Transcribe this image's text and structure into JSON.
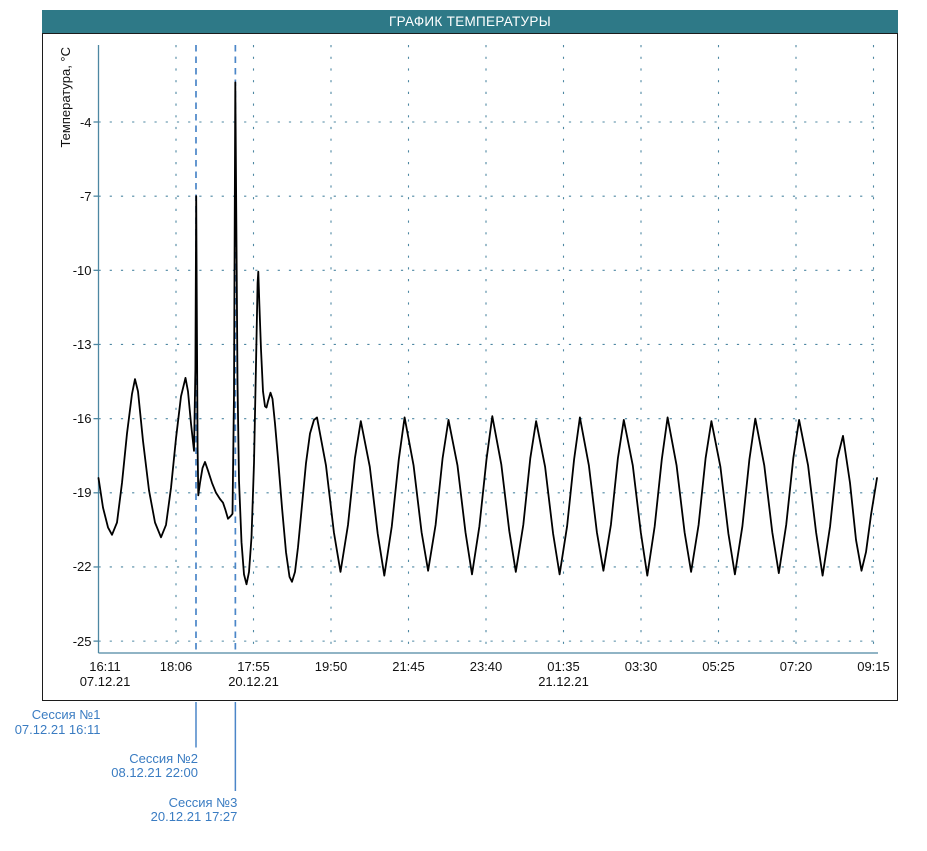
{
  "title": "ГРАФИК ТЕМПЕРАТУРЫ",
  "colors": {
    "title_bar_bg": "#2e7987",
    "title_text": "#ffffff",
    "frame_border": "#1c1c1c",
    "axis": "#4d87a2",
    "grid": "#4d87a2",
    "curve": "#000000",
    "session_line": "#4b86c8",
    "session_text": "#3a7cc2",
    "tick_text": "#111111"
  },
  "sessions": [
    {
      "name": "Сессия №1",
      "datetime": "07.12.21 16:11",
      "axis_u": 0.0,
      "has_line": false
    },
    {
      "name": "Сессия №2",
      "datetime": "08.12.21 22:00",
      "axis_u": 1.258,
      "has_line": true
    },
    {
      "name": "Сессия №3",
      "datetime": "20.12.21 17:27",
      "axis_u": 1.766,
      "has_line": true
    }
  ],
  "chart_data": {
    "type": "line",
    "title": "ГРАФИК ТЕМПЕРАТУРЫ",
    "xlabel": "",
    "ylabel": "Температура, °C",
    "ylim": [
      -25.5,
      -0.9
    ],
    "grid": "dotted",
    "legend": "none",
    "x_unit": "x-axis tick index (16:11 07.12.21 = 0 ... 09:15 = 10)",
    "y_ticks": [
      -4,
      -7,
      -10,
      -13,
      -16,
      -19,
      -22,
      -25
    ],
    "x_ticks": [
      {
        "time": "16:11",
        "date": "07.12.21"
      },
      {
        "time": "18:06",
        "date": ""
      },
      {
        "time": "17:55",
        "date": "20.12.21"
      },
      {
        "time": "19:50",
        "date": ""
      },
      {
        "time": "21:45",
        "date": ""
      },
      {
        "time": "23:40",
        "date": ""
      },
      {
        "time": "01:35",
        "date": "21.12.21"
      },
      {
        "time": "03:30",
        "date": ""
      },
      {
        "time": "05:25",
        "date": ""
      },
      {
        "time": "07:20",
        "date": ""
      },
      {
        "time": "09:15",
        "date": ""
      }
    ],
    "annotations": [
      {
        "label": "Сессия №1",
        "x_u": 0.0
      },
      {
        "label": "Сессия №2",
        "x_u": 1.258
      },
      {
        "label": "Сессия №3",
        "x_u": 1.766
      }
    ],
    "points": [
      [
        0.0,
        -18.4
      ],
      [
        0.058,
        -19.6
      ],
      [
        0.123,
        -20.4
      ],
      [
        0.174,
        -20.7
      ],
      [
        0.239,
        -20.2
      ],
      [
        0.303,
        -18.6
      ],
      [
        0.368,
        -16.6
      ],
      [
        0.432,
        -15.0
      ],
      [
        0.471,
        -14.4
      ],
      [
        0.51,
        -14.9
      ],
      [
        0.574,
        -16.9
      ],
      [
        0.652,
        -18.9
      ],
      [
        0.729,
        -20.2
      ],
      [
        0.806,
        -20.8
      ],
      [
        0.871,
        -20.3
      ],
      [
        0.935,
        -18.8
      ],
      [
        1.0,
        -16.8
      ],
      [
        1.065,
        -15.1
      ],
      [
        1.123,
        -14.35
      ],
      [
        1.155,
        -14.9
      ],
      [
        1.194,
        -16.2
      ],
      [
        1.232,
        -17.3
      ],
      [
        1.25,
        -14.0
      ],
      [
        1.261,
        -7.0
      ],
      [
        1.271,
        -13.0
      ],
      [
        1.279,
        -17.2
      ],
      [
        1.288,
        -19.1
      ],
      [
        1.31,
        -18.6
      ],
      [
        1.342,
        -18.0
      ],
      [
        1.374,
        -17.75
      ],
      [
        1.413,
        -18.1
      ],
      [
        1.465,
        -18.6
      ],
      [
        1.516,
        -19.0
      ],
      [
        1.568,
        -19.25
      ],
      [
        1.606,
        -19.4
      ],
      [
        1.639,
        -19.7
      ],
      [
        1.671,
        -20.05
      ],
      [
        1.703,
        -19.95
      ],
      [
        1.729,
        -19.85
      ],
      [
        1.748,
        -15.0
      ],
      [
        1.765,
        -2.4
      ],
      [
        1.781,
        -9.0
      ],
      [
        1.794,
        -14.5
      ],
      [
        1.813,
        -18.5
      ],
      [
        1.845,
        -21.0
      ],
      [
        1.877,
        -22.3
      ],
      [
        1.91,
        -22.7
      ],
      [
        1.942,
        -22.2
      ],
      [
        1.974,
        -20.8
      ],
      [
        2.006,
        -17.8
      ],
      [
        2.032,
        -13.8
      ],
      [
        2.053,
        -10.5
      ],
      [
        2.062,
        -10.05
      ],
      [
        2.075,
        -11.3
      ],
      [
        2.097,
        -13.2
      ],
      [
        2.123,
        -14.9
      ],
      [
        2.148,
        -15.5
      ],
      [
        2.168,
        -15.55
      ],
      [
        2.187,
        -15.3
      ],
      [
        2.219,
        -14.95
      ],
      [
        2.245,
        -15.2
      ],
      [
        2.277,
        -16.2
      ],
      [
        2.316,
        -17.6
      ],
      [
        2.368,
        -19.6
      ],
      [
        2.419,
        -21.4
      ],
      [
        2.465,
        -22.4
      ],
      [
        2.497,
        -22.6
      ],
      [
        2.535,
        -22.2
      ],
      [
        2.574,
        -21.2
      ],
      [
        2.626,
        -19.5
      ],
      [
        2.677,
        -17.8
      ],
      [
        2.729,
        -16.6
      ],
      [
        2.781,
        -16.05
      ],
      [
        2.819,
        -15.95
      ],
      [
        2.935,
        -17.9
      ],
      [
        3.038,
        -20.6
      ],
      [
        3.122,
        -22.2
      ],
      [
        3.219,
        -20.3
      ],
      [
        3.309,
        -17.6
      ],
      [
        3.384,
        -16.1
      ],
      [
        3.5,
        -17.95
      ],
      [
        3.603,
        -20.65
      ],
      [
        3.688,
        -22.35
      ],
      [
        3.784,
        -20.35
      ],
      [
        3.875,
        -17.65
      ],
      [
        3.95,
        -15.95
      ],
      [
        4.066,
        -17.9
      ],
      [
        4.169,
        -20.6
      ],
      [
        4.253,
        -22.15
      ],
      [
        4.35,
        -20.3
      ],
      [
        4.44,
        -17.6
      ],
      [
        4.516,
        -16.05
      ],
      [
        4.632,
        -17.9
      ],
      [
        4.735,
        -20.6
      ],
      [
        4.819,
        -22.3
      ],
      [
        4.915,
        -20.35
      ],
      [
        5.006,
        -17.65
      ],
      [
        5.081,
        -15.9
      ],
      [
        5.197,
        -17.85
      ],
      [
        5.3,
        -20.55
      ],
      [
        5.384,
        -22.2
      ],
      [
        5.481,
        -20.3
      ],
      [
        5.571,
        -17.6
      ],
      [
        5.647,
        -16.1
      ],
      [
        5.763,
        -17.95
      ],
      [
        5.866,
        -20.65
      ],
      [
        5.95,
        -22.3
      ],
      [
        6.046,
        -20.35
      ],
      [
        6.137,
        -17.65
      ],
      [
        6.212,
        -15.95
      ],
      [
        6.328,
        -17.9
      ],
      [
        6.431,
        -20.6
      ],
      [
        6.515,
        -22.15
      ],
      [
        6.612,
        -20.3
      ],
      [
        6.702,
        -17.6
      ],
      [
        6.778,
        -16.05
      ],
      [
        6.894,
        -17.9
      ],
      [
        6.997,
        -20.6
      ],
      [
        7.081,
        -22.35
      ],
      [
        7.177,
        -20.35
      ],
      [
        7.268,
        -17.65
      ],
      [
        7.343,
        -15.95
      ],
      [
        7.459,
        -17.9
      ],
      [
        7.562,
        -20.6
      ],
      [
        7.646,
        -22.2
      ],
      [
        7.743,
        -20.3
      ],
      [
        7.833,
        -17.6
      ],
      [
        7.909,
        -16.1
      ],
      [
        8.025,
        -17.95
      ],
      [
        8.128,
        -20.65
      ],
      [
        8.212,
        -22.3
      ],
      [
        8.308,
        -20.35
      ],
      [
        8.399,
        -17.65
      ],
      [
        8.475,
        -16.0
      ],
      [
        8.591,
        -17.9
      ],
      [
        8.694,
        -20.6
      ],
      [
        8.778,
        -22.25
      ],
      [
        8.874,
        -20.3
      ],
      [
        8.965,
        -17.6
      ],
      [
        9.04,
        -16.05
      ],
      [
        9.156,
        -17.9
      ],
      [
        9.259,
        -20.6
      ],
      [
        9.343,
        -22.35
      ],
      [
        9.44,
        -20.35
      ],
      [
        9.53,
        -17.65
      ],
      [
        9.606,
        -16.7
      ],
      [
        9.697,
        -18.6
      ],
      [
        9.774,
        -20.9
      ],
      [
        9.845,
        -22.15
      ],
      [
        9.903,
        -21.4
      ],
      [
        9.968,
        -19.9
      ],
      [
        10.045,
        -18.4
      ]
    ]
  }
}
